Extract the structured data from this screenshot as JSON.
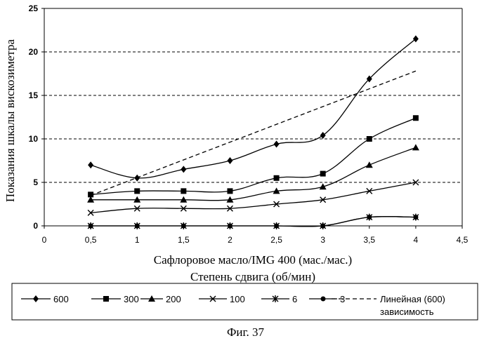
{
  "figure": {
    "caption": "Фиг. 37"
  },
  "chart_data": {
    "type": "line",
    "xlabel": "Сафлоровое масло/IMG 400 (мас./мас.)",
    "xlabel2": "Степень сдвига (об/мин)",
    "ylabel": "Показания шкалы вискозиметра",
    "xlim": [
      0,
      4.5
    ],
    "ylim": [
      0,
      25
    ],
    "x_ticks": [
      "0",
      "0,5",
      "1",
      "1,5",
      "2",
      "2,5",
      "3",
      "3,5",
      "4",
      "4,5"
    ],
    "y_ticks": [
      "0",
      "5",
      "10",
      "15",
      "20",
      "25"
    ],
    "grid": "horizontal dashed",
    "x": [
      0.5,
      1,
      1.5,
      2,
      2.5,
      3,
      3.5,
      4
    ],
    "series": [
      {
        "name": "600",
        "marker": "diamond",
        "values": [
          7,
          5.5,
          6.5,
          7.5,
          9.4,
          10.4,
          16.9,
          21.5
        ]
      },
      {
        "name": "300",
        "marker": "square",
        "values": [
          3.6,
          4.0,
          4.0,
          4.0,
          5.5,
          6.0,
          10.0,
          12.4
        ]
      },
      {
        "name": "200",
        "marker": "triangle",
        "values": [
          3.0,
          3.0,
          3.0,
          3.0,
          4.0,
          4.5,
          7.0,
          9.0
        ]
      },
      {
        "name": "100",
        "marker": "x",
        "values": [
          1.5,
          2.0,
          2.0,
          2.0,
          2.5,
          3.0,
          4.0,
          5.0
        ]
      },
      {
        "name": "6",
        "marker": "star",
        "values": [
          0,
          0,
          0,
          0,
          0,
          0,
          1.0,
          1.0
        ]
      },
      {
        "name": "3",
        "marker": "circle",
        "values": [
          0,
          0,
          0,
          0,
          0,
          0,
          1.0,
          1.0
        ]
      }
    ],
    "trendline": {
      "legend_line1": "Линейная (600)",
      "legend_line2": "зависимость",
      "start": [
        0.5,
        3.5
      ],
      "end": [
        4,
        17.8
      ]
    }
  }
}
